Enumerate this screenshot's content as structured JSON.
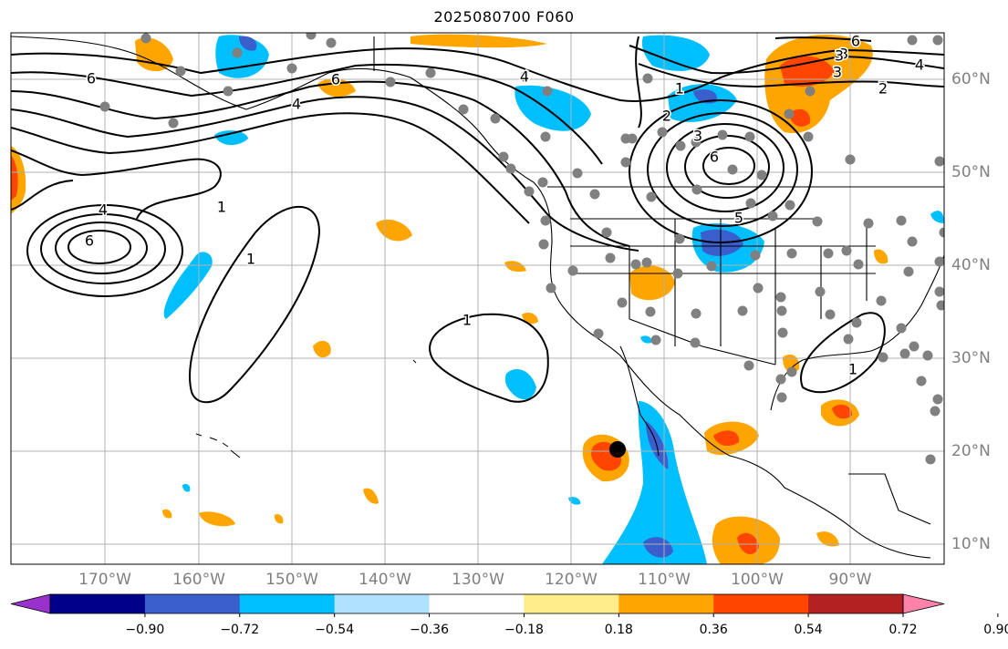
{
  "title": "2025080700 F060",
  "lon_labels": [
    "170°W",
    "160°W",
    "150°W",
    "140°W",
    "130°W",
    "120°W",
    "110°W",
    "100°W",
    "90°W"
  ],
  "lat_labels": [
    "60°N",
    "50°N",
    "40°N",
    "30°N",
    "20°N",
    "10°N"
  ],
  "colorbar": {
    "tick_labels": [
      "−0.90",
      "−0.72",
      "−0.54",
      "−0.36",
      "−0.18",
      "0.18",
      "0.36",
      "0.54",
      "0.72",
      "0.90"
    ],
    "colors": [
      "#9932cc",
      "#00008b",
      "#3a5fcd",
      "#00bfff",
      "#b0e2ff",
      "#ffffff",
      "#ffec8b",
      "#ffa500",
      "#ff4500",
      "#b22222",
      "#ff82ab"
    ]
  },
  "contour_labels": [
    "6",
    "4",
    "6",
    "4",
    "1",
    "1",
    "6",
    "1",
    "6",
    "4",
    "2",
    "1",
    "2",
    "3",
    "3",
    "4",
    "3",
    "2",
    "3",
    "6",
    "5",
    "6",
    "1"
  ],
  "colors": {
    "grid": "#b0b0b0",
    "coast": "#000000",
    "station": "#808080",
    "marker": "#000000"
  }
}
